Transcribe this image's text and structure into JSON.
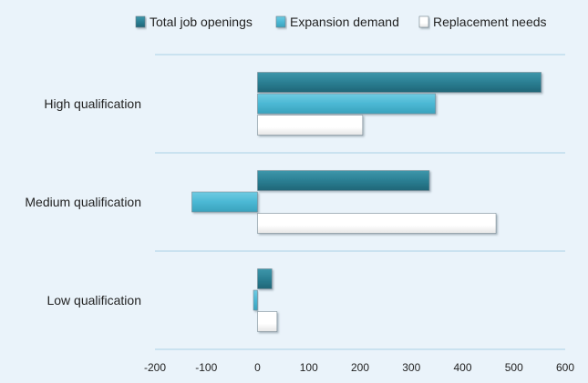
{
  "chart_data": {
    "type": "bar",
    "orientation": "horizontal",
    "title": "",
    "xlabel": "",
    "ylabel": "",
    "categories": [
      "High qualification",
      "Medium qualification",
      "Low qualification"
    ],
    "series": [
      {
        "name": "Total job openings",
        "values": [
          553,
          335,
          28
        ],
        "color": "#2b7f93"
      },
      {
        "name": "Expansion demand",
        "values": [
          347,
          -128,
          -8
        ],
        "color": "#4bb8d4"
      },
      {
        "name": "Replacement needs",
        "values": [
          205,
          465,
          38
        ],
        "color": "#ffffff"
      }
    ],
    "xlim": [
      -200,
      600
    ],
    "xticks": [
      "-200",
      "-100",
      "0",
      "100",
      "200",
      "300",
      "400",
      "500",
      "600"
    ],
    "legend_position": "top",
    "grid": "horizontal category separators"
  }
}
